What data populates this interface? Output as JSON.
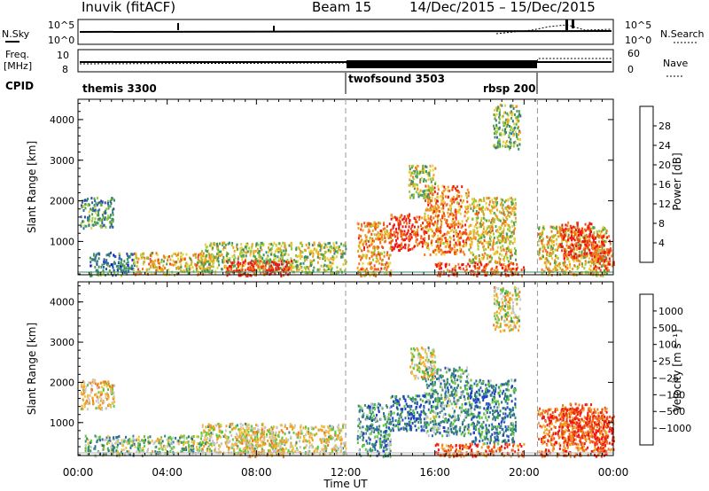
{
  "header": {
    "station": "Inuvik (fitACF)",
    "beam": "Beam 15",
    "dates": "14/Dec/2015 – 15/Dec/2015"
  },
  "noise_panel": {
    "left_label": "N.Sky",
    "left_ticks": [
      "10^5",
      "10^0"
    ],
    "right_ticks": [
      "10^5",
      "10^0"
    ],
    "right_label": "N.Search"
  },
  "freq_panel": {
    "left_label_1": "Freq.",
    "left_label_2": "[MHz]",
    "left_ticks": [
      "10",
      "8"
    ],
    "right_ticks": [
      "60",
      "0"
    ],
    "right_label": "Nave"
  },
  "cpid_panel": {
    "label": "CPID",
    "segments": [
      {
        "name": "themis 3300",
        "start_hour": 0,
        "end_hour": 12
      },
      {
        "name": "twofsound 3503",
        "start_hour": 12,
        "end_hour": 20.6
      },
      {
        "name": "rbsp 200",
        "start_hour": 20.6,
        "end_hour": 24
      }
    ]
  },
  "chart_data": [
    {
      "type": "heatmap",
      "panel": "power",
      "ylabel": "Slant Range [km]",
      "xlabel": "Time UT",
      "yticks": [
        1000,
        2000,
        3000,
        4000
      ],
      "ylim": [
        180,
        4500
      ],
      "xlim_hours": [
        0,
        24
      ],
      "xticks": [
        "00:00",
        "04:00",
        "08:00",
        "12:00",
        "16:00",
        "20:00",
        "00:00"
      ],
      "colorbar": {
        "label": "Power [dB]",
        "ticks": [
          "28",
          "24",
          "20",
          "16",
          "12",
          "8",
          "4"
        ],
        "colors": [
          "#0000f0",
          "#2d44b4",
          "#2a6e9c",
          "#3a8c6a",
          "#4fa24a",
          "#9ec83a",
          "#e8d23a",
          "#f0a020",
          "#f07820",
          "#f04a14",
          "#f01414"
        ]
      },
      "regions": [
        {
          "t0": 0.1,
          "t1": 1.6,
          "r0": 1350,
          "r1": 2100,
          "level": 0.35
        },
        {
          "t0": 0.5,
          "t1": 2.5,
          "r0": 180,
          "r1": 750,
          "level": 0.3
        },
        {
          "t0": 2.5,
          "t1": 6.0,
          "r0": 200,
          "r1": 750,
          "level": 0.65
        },
        {
          "t0": 5.5,
          "t1": 12.0,
          "r0": 250,
          "r1": 1000,
          "level": 0.5
        },
        {
          "t0": 6.6,
          "t1": 9.6,
          "r0": 180,
          "r1": 550,
          "level": 0.95
        },
        {
          "t0": 12.5,
          "t1": 14.0,
          "r0": 180,
          "r1": 1500,
          "level": 0.7
        },
        {
          "t0": 14.0,
          "t1": 15.5,
          "r0": 800,
          "r1": 1700,
          "level": 0.9
        },
        {
          "t0": 15.5,
          "t1": 17.5,
          "r0": 700,
          "r1": 2400,
          "level": 0.75
        },
        {
          "t0": 17.5,
          "t1": 19.6,
          "r0": 500,
          "r1": 2100,
          "level": 0.6
        },
        {
          "t0": 16.0,
          "t1": 20.0,
          "r0": 180,
          "r1": 500,
          "level": 0.9
        },
        {
          "t0": 18.6,
          "t1": 19.8,
          "r0": 3300,
          "r1": 4400,
          "level": 0.45
        },
        {
          "t0": 20.6,
          "t1": 23.7,
          "r0": 180,
          "r1": 1400,
          "level": 0.6
        },
        {
          "t0": 21.6,
          "t1": 23.0,
          "r0": 600,
          "r1": 1500,
          "level": 0.95
        },
        {
          "t0": 23.0,
          "t1": 24.0,
          "r0": 300,
          "r1": 1200,
          "level": 0.9
        },
        {
          "t0": 14.8,
          "t1": 16.0,
          "r0": 2100,
          "r1": 2900,
          "level": 0.55
        }
      ]
    },
    {
      "type": "heatmap",
      "panel": "velocity",
      "ylabel": "Slant Range [km]",
      "xlabel": "Time UT",
      "yticks": [
        1000,
        2000,
        3000,
        4000
      ],
      "ylim": [
        180,
        4500
      ],
      "xlim_hours": [
        0,
        24
      ],
      "xticks": [
        "00:00",
        "04:00",
        "08:00",
        "12:00",
        "16:00",
        "20:00",
        "00:00"
      ],
      "colorbar": {
        "label": "Velocity [m s⁻¹]",
        "ticks": [
          "1000",
          "500",
          "100",
          "25",
          "−25",
          "−100",
          "−500",
          "−1000"
        ],
        "colors": [
          "#2040c8",
          "#2a6e9c",
          "#3a8c6a",
          "#5ec83a",
          "#c8c8c8",
          "#f0c040",
          "#f0a020",
          "#f07820",
          "#f04a14",
          "#f01414"
        ]
      },
      "regions": [
        {
          "t0": 0.1,
          "t1": 1.6,
          "r0": 1350,
          "r1": 2100,
          "level": 0.55
        },
        {
          "t0": 0.3,
          "t1": 3.0,
          "r0": 180,
          "r1": 700,
          "level": 0.35
        },
        {
          "t0": 3.0,
          "t1": 6.0,
          "r0": 250,
          "r1": 700,
          "level": 0.4
        },
        {
          "t0": 5.5,
          "t1": 12.0,
          "r0": 250,
          "r1": 1000,
          "level": 0.5
        },
        {
          "t0": 7.2,
          "t1": 9.2,
          "r0": 180,
          "r1": 850,
          "level": 0.55
        },
        {
          "t0": 12.5,
          "t1": 14.0,
          "r0": 180,
          "r1": 1500,
          "level": 0.25
        },
        {
          "t0": 14.0,
          "t1": 15.5,
          "r0": 800,
          "r1": 1700,
          "level": 0.15
        },
        {
          "t0": 15.5,
          "t1": 17.5,
          "r0": 700,
          "r1": 2400,
          "level": 0.3
        },
        {
          "t0": 17.5,
          "t1": 19.6,
          "r0": 500,
          "r1": 2100,
          "level": 0.2
        },
        {
          "t0": 16.0,
          "t1": 20.0,
          "r0": 180,
          "r1": 500,
          "level": 0.8
        },
        {
          "t0": 18.6,
          "t1": 19.8,
          "r0": 3300,
          "r1": 4400,
          "level": 0.5
        },
        {
          "t0": 20.6,
          "t1": 23.7,
          "r0": 180,
          "r1": 1400,
          "level": 0.8
        },
        {
          "t0": 21.6,
          "t1": 23.0,
          "r0": 600,
          "r1": 1500,
          "level": 0.85
        },
        {
          "t0": 23.0,
          "t1": 24.0,
          "r0": 300,
          "r1": 1200,
          "level": 0.9
        },
        {
          "t0": 14.8,
          "t1": 16.0,
          "r0": 2100,
          "r1": 2900,
          "level": 0.5
        }
      ]
    }
  ]
}
